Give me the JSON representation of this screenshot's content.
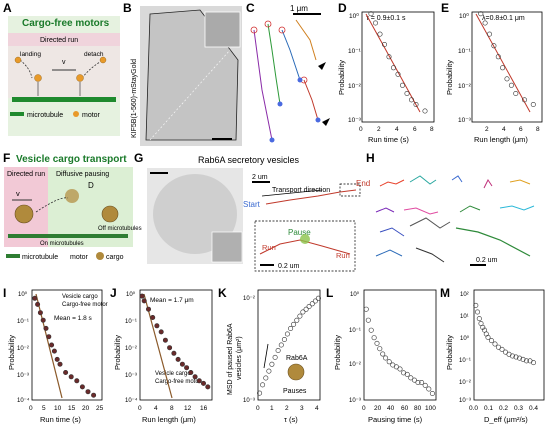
{
  "panels": {
    "A": {
      "letter": "A",
      "title": "Cargo-free motors",
      "bar": "Directed run",
      "landing": "landing",
      "v": "v",
      "detach": "detach",
      "legend_mt": "microtubule",
      "legend_motor": "motor"
    },
    "B": {
      "letter": "B",
      "ylabel": "KIF5B(1-560)-mStayGold"
    },
    "C": {
      "letter": "C",
      "scale": "1 μm"
    },
    "D": {
      "letter": "D",
      "annot": "τ = 0.9±0.1 s",
      "xlabel": "Run time (s)",
      "ylabel": "Probability",
      "xticks": [
        "0",
        "2",
        "4",
        "6",
        "8"
      ],
      "yticks": [
        "10⁰",
        "10⁻¹",
        "10⁻²",
        "10⁻³"
      ]
    },
    "E": {
      "letter": "E",
      "annot": "λ=0.8±0.1 μm",
      "xlabel": "Run length (μm)",
      "ylabel": "Probability",
      "xticks": [
        "2",
        "4",
        "6",
        "8"
      ],
      "yticks": [
        "10⁰",
        "10⁻¹",
        "10⁻²",
        "10⁻³"
      ]
    },
    "F": {
      "letter": "F",
      "title": "Vesicle cargo transport",
      "bar1": "Directed run",
      "bar2": "Diffusive pausing",
      "v": "v",
      "d": "D",
      "off": "Off microtubules",
      "on": "On microtubules",
      "legend_mt": "microtubule",
      "legend_motor": "motor",
      "legend_cargo": "cargo"
    },
    "G": {
      "letter": "G",
      "title": "Rab6A secretory vesicles",
      "scale1": "2 um",
      "direction": "Transport direction",
      "start": "Start",
      "end": "End",
      "pause": "Pause",
      "run1": "Run",
      "run2": "Run",
      "scale2": "0.2 um"
    },
    "H": {
      "letter": "H",
      "scale": "0.2 um"
    },
    "I": {
      "letter": "I",
      "legend1": "Vesicle cargo",
      "legend2": "Cargo-free motor",
      "annot": "Mean = 1.8 s",
      "xlabel": "Run time (s)",
      "ylabel": "Probability",
      "xticks": [
        "0",
        "5",
        "10",
        "15",
        "20",
        "25"
      ],
      "yticks": [
        "10⁰",
        "10⁻¹",
        "10⁻²",
        "10⁻³",
        "10⁻⁴"
      ]
    },
    "J": {
      "letter": "J",
      "annot": "Mean = 1.7 μm",
      "legend1": "Vesicle cargo",
      "legend2": "Cargo-free motor",
      "xlabel": "Run length (μm)",
      "ylabel": "Probability",
      "xticks": [
        "0",
        "4",
        "8",
        "12",
        "16"
      ],
      "yticks": [
        "10⁰",
        "10⁻¹",
        "10⁻²",
        "10⁻³",
        "10⁻⁴"
      ]
    },
    "K": {
      "letter": "K",
      "ylabel1": "MSD of paused Rab6A",
      "ylabel2": "vesicles (μm²)",
      "xlabel": "τ (s)",
      "inset": "Rab6A",
      "pauses": "Pauses",
      "xticks": [
        "0",
        "1",
        "2",
        "3",
        "4"
      ],
      "yticks": [
        "10⁻²",
        "10⁻³"
      ]
    },
    "L": {
      "letter": "L",
      "xlabel": "Pausing time (s)",
      "ylabel": "Probability",
      "xticks": [
        "0",
        "20",
        "40",
        "60",
        "80",
        "100"
      ],
      "yticks": [
        "10⁰",
        "10⁻¹",
        "10⁻²",
        "10⁻³"
      ]
    },
    "M": {
      "letter": "M",
      "xlabel": "D_eff (μm²/s)",
      "ylabel": "Probability",
      "xticks": [
        "0.0",
        "0.1",
        "0.2",
        "0.3",
        "0.4"
      ],
      "yticks": [
        "10²",
        "10¹",
        "10⁰",
        "10⁻¹",
        "10⁻²",
        "10⁻³"
      ]
    }
  },
  "colors": {
    "pink": "#f2c9d6",
    "green_bg": "#d8ecd0",
    "mt_green": "#1f8a2e",
    "motor": "#e89a2a",
    "cargo": "#b08a3c",
    "fit_red": "#c0392b",
    "fit_brown": "#8b5a2b"
  },
  "chart_data": [
    {
      "id": "D",
      "type": "scatter",
      "x": [
        1.0,
        1.5,
        2.0,
        2.5,
        3.0,
        3.5,
        4.0,
        4.5,
        5.0,
        5.5,
        6.0,
        7.0
      ],
      "y": [
        0.9,
        0.5,
        0.25,
        0.13,
        0.06,
        0.03,
        0.02,
        0.01,
        0.006,
        0.004,
        0.003,
        0.002
      ],
      "xlim": [
        0,
        8
      ],
      "ylim": [
        0.001,
        1
      ],
      "yscale": "log"
    },
    {
      "id": "E",
      "type": "scatter",
      "x": [
        1.0,
        1.5,
        2.0,
        2.5,
        3.0,
        3.5,
        4.0,
        4.5,
        5.0,
        6.0,
        7.0
      ],
      "y": [
        0.9,
        0.5,
        0.25,
        0.12,
        0.06,
        0.03,
        0.015,
        0.01,
        0.006,
        0.004,
        0.003
      ],
      "xlim": [
        0,
        8
      ],
      "ylim": [
        0.001,
        1
      ],
      "yscale": "log"
    },
    {
      "id": "I",
      "type": "scatter",
      "x": [
        1,
        2,
        3,
        4,
        5,
        6,
        7,
        8,
        9,
        10,
        12,
        14,
        16,
        18,
        20,
        22
      ],
      "y": [
        0.5,
        0.3,
        0.15,
        0.08,
        0.04,
        0.02,
        0.01,
        0.006,
        0.003,
        0.002,
        0.001,
        0.0007,
        0.0005,
        0.0003,
        0.0002,
        0.00015
      ],
      "xlim": [
        0,
        25
      ],
      "ylim": [
        0.0001,
        1
      ],
      "yscale": "log"
    },
    {
      "id": "J",
      "type": "scatter",
      "x": [
        0.5,
        1,
        2,
        3,
        4,
        5,
        6,
        7,
        8,
        9,
        10,
        11,
        12,
        13,
        14,
        15,
        16
      ],
      "y": [
        0.6,
        0.4,
        0.2,
        0.1,
        0.05,
        0.03,
        0.015,
        0.008,
        0.005,
        0.003,
        0.002,
        0.0015,
        0.001,
        0.0007,
        0.0005,
        0.0004,
        0.0003
      ],
      "xlim": [
        0,
        17
      ],
      "ylim": [
        0.0001,
        1
      ],
      "yscale": "log"
    },
    {
      "id": "K",
      "type": "scatter",
      "x": [
        0.1,
        0.3,
        0.5,
        0.7,
        0.9,
        1.1,
        1.3,
        1.5,
        1.7,
        1.9,
        2.1,
        2.3,
        2.5,
        2.7,
        2.9,
        3.1,
        3.3,
        3.5,
        3.7,
        3.9
      ],
      "y": [
        0.0005,
        0.0011,
        0.0016,
        0.0021,
        0.0026,
        0.0031,
        0.0036,
        0.004,
        0.0044,
        0.0048,
        0.0052,
        0.0055,
        0.0058,
        0.0061,
        0.0064,
        0.0066,
        0.0068,
        0.007,
        0.0072,
        0.0074
      ],
      "xlim": [
        0,
        4
      ],
      "ylim": [
        0,
        0.008
      ]
    },
    {
      "id": "L",
      "type": "scatter",
      "x": [
        3,
        6,
        10,
        14,
        18,
        22,
        26,
        30,
        35,
        40,
        45,
        50,
        55,
        60,
        65,
        70,
        75,
        80,
        85,
        90,
        95
      ],
      "y": [
        0.3,
        0.15,
        0.08,
        0.05,
        0.035,
        0.025,
        0.018,
        0.014,
        0.011,
        0.009,
        0.008,
        0.007,
        0.0055,
        0.005,
        0.004,
        0.0035,
        0.003,
        0.003,
        0.0025,
        0.002,
        0.0015
      ],
      "xlim": [
        0,
        100
      ],
      "ylim": [
        0.001,
        1
      ],
      "yscale": "log"
    },
    {
      "id": "M",
      "type": "scatter",
      "x": [
        0.01,
        0.02,
        0.03,
        0.04,
        0.05,
        0.06,
        0.07,
        0.08,
        0.1,
        0.12,
        0.14,
        0.16,
        0.18,
        0.2,
        0.22,
        0.24,
        0.26,
        0.28,
        0.3,
        0.32,
        0.34
      ],
      "y": [
        20,
        10,
        5,
        3,
        2,
        1.5,
        1,
        0.7,
        0.5,
        0.35,
        0.25,
        0.2,
        0.15,
        0.12,
        0.1,
        0.09,
        0.08,
        0.07,
        0.06,
        0.06,
        0.05
      ],
      "xlim": [
        0,
        0.4
      ],
      "ylim": [
        0.001,
        100
      ],
      "yscale": "log"
    }
  ]
}
